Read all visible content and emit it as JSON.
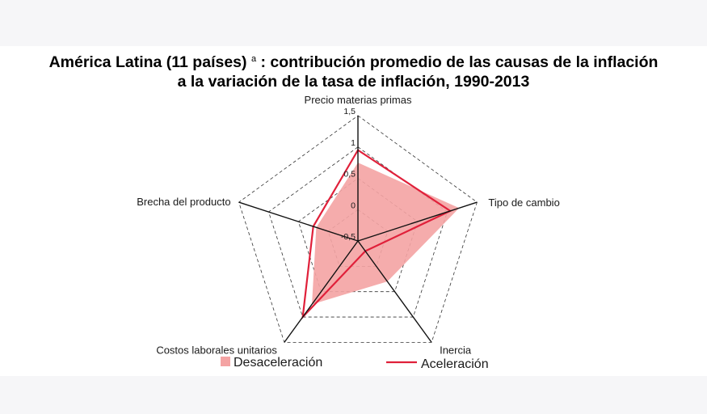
{
  "title": {
    "line1": "América Latina (11 países)",
    "note": "a",
    "line1_rest": ": contribución promedio de las causas de la inflación",
    "line2": "a la variación de la tasa de inflación, 1990-2013"
  },
  "chart_data": {
    "type": "radar",
    "axes": [
      "Precio materias primas",
      "Tipo de cambio",
      "Inercia",
      "Costos laborales unitarios",
      "Brecha del producto"
    ],
    "ticks": [
      "-0,5",
      "0",
      "0,5",
      "1",
      "1,5"
    ],
    "range": [
      -0.5,
      1.5
    ],
    "grid": "dashed pentagons",
    "legend_position": "bottom",
    "series": [
      {
        "name": "Desaceleración",
        "kind": "filled-area",
        "color": "#f4a3a3",
        "values": [
          0.75,
          1.2,
          0.3,
          0.75,
          0.2
        ]
      },
      {
        "name": "Aceleración",
        "kind": "line",
        "color": "#e0203a",
        "values": [
          0.95,
          1.05,
          -0.3,
          1.0,
          0.25
        ]
      }
    ]
  }
}
